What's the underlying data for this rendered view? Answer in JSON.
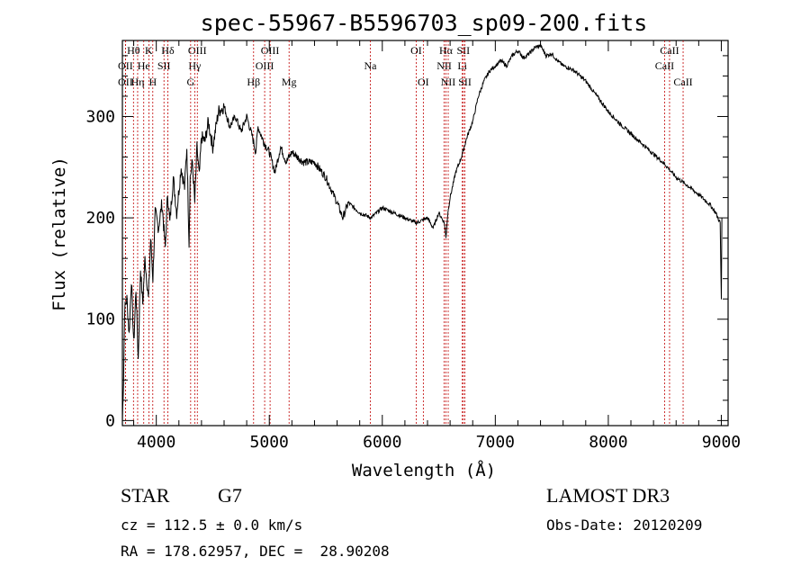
{
  "colors": {
    "axis": "#000000",
    "spectrum": "#000000",
    "line_marker": "#c00000",
    "background": "#ffffff"
  },
  "chart_data": {
    "type": "line",
    "title": "spec-55967-B5596703_sp09-200.fits",
    "xlabel": "Wavelength (Å)",
    "ylabel": "Flux (relative)",
    "xlim": [
      3700,
      9060
    ],
    "ylim": [
      -5,
      375
    ],
    "xticks": [
      4000,
      5000,
      6000,
      7000,
      8000,
      9000
    ],
    "yticks": [
      0,
      100,
      200,
      300
    ],
    "grid": false,
    "legend": "none",
    "series": [
      {
        "name": "flux",
        "x": [
          3700,
          3710,
          3720,
          3740,
          3760,
          3780,
          3800,
          3820,
          3840,
          3860,
          3880,
          3900,
          3930,
          3950,
          3970,
          3990,
          4020,
          4050,
          4080,
          4100,
          4120,
          4150,
          4180,
          4220,
          4250,
          4270,
          4290,
          4300,
          4320,
          4340,
          4360,
          4380,
          4400,
          4430,
          4460,
          4500,
          4550,
          4600,
          4650,
          4700,
          4750,
          4800,
          4850,
          4880,
          4900,
          4950,
          5000,
          5050,
          5100,
          5150,
          5200,
          5300,
          5400,
          5500,
          5600,
          5650,
          5700,
          5800,
          5900,
          6000,
          6100,
          6200,
          6300,
          6400,
          6450,
          6500,
          6550,
          6563,
          6580,
          6600,
          6650,
          6700,
          6750,
          6800,
          6850,
          6900,
          6950,
          7000,
          7050,
          7100,
          7150,
          7200,
          7250,
          7300,
          7350,
          7400,
          7450,
          7500,
          7550,
          7600,
          7650,
          7700,
          7800,
          7900,
          8000,
          8100,
          8200,
          8300,
          8400,
          8500,
          8600,
          8700,
          8800,
          8900,
          8950,
          8990,
          9000,
          9005
        ],
        "y": [
          0,
          40,
          110,
          120,
          85,
          140,
          75,
          130,
          60,
          150,
          115,
          160,
          120,
          180,
          140,
          205,
          190,
          215,
          170,
          225,
          195,
          240,
          205,
          250,
          230,
          270,
          175,
          240,
          255,
          215,
          270,
          240,
          280,
          275,
          295,
          270,
          305,
          310,
          290,
          300,
          285,
          300,
          280,
          265,
          290,
          275,
          265,
          245,
          270,
          255,
          265,
          255,
          255,
          240,
          215,
          200,
          215,
          205,
          200,
          210,
          205,
          200,
          195,
          200,
          190,
          205,
          195,
          180,
          205,
          220,
          245,
          260,
          280,
          295,
          320,
          335,
          345,
          350,
          355,
          350,
          360,
          365,
          358,
          362,
          368,
          370,
          360,
          362,
          355,
          350,
          348,
          345,
          335,
          320,
          305,
          293,
          283,
          273,
          263,
          253,
          240,
          232,
          223,
          213,
          205,
          195,
          120,
          200
        ]
      }
    ],
    "line_ids": [
      {
        "name": "Hθ",
        "wave": 3798,
        "row": 0
      },
      {
        "name": "OII",
        "wave": 3727,
        "row": 1
      },
      {
        "name": "OII",
        "wave": 3727,
        "row": 2
      },
      {
        "name": "He",
        "wave": 3889,
        "row": 1
      },
      {
        "name": "Hη",
        "wave": 3835,
        "row": 2
      },
      {
        "name": "K",
        "wave": 3934,
        "row": 0
      },
      {
        "name": "SII",
        "wave": 4068,
        "row": 1
      },
      {
        "name": "H",
        "wave": 3969,
        "row": 2
      },
      {
        "name": "Hδ",
        "wave": 4102,
        "row": 0
      },
      {
        "name": "OIII",
        "wave": 4363,
        "row": 0
      },
      {
        "name": "Hγ",
        "wave": 4340,
        "row": 1
      },
      {
        "name": "G",
        "wave": 4304,
        "row": 2
      },
      {
        "name": "OIII",
        "wave": 5007,
        "row": 0
      },
      {
        "name": "OIII",
        "wave": 4959,
        "row": 1
      },
      {
        "name": "Hβ",
        "wave": 4861,
        "row": 2
      },
      {
        "name": "Mg",
        "wave": 5175,
        "row": 2
      },
      {
        "name": "Na",
        "wave": 5894,
        "row": 1
      },
      {
        "name": "OI",
        "wave": 6300,
        "row": 0
      },
      {
        "name": "OI",
        "wave": 6363,
        "row": 2
      },
      {
        "name": "Hα",
        "wave": 6563,
        "row": 0
      },
      {
        "name": "SII",
        "wave": 6717,
        "row": 0
      },
      {
        "name": "NII",
        "wave": 6548,
        "row": 1
      },
      {
        "name": "Li",
        "wave": 6708,
        "row": 1
      },
      {
        "name": "NII",
        "wave": 6583,
        "row": 2
      },
      {
        "name": "SII",
        "wave": 6731,
        "row": 2
      },
      {
        "name": "CaII",
        "wave": 8542,
        "row": 0
      },
      {
        "name": "CaII",
        "wave": 8498,
        "row": 1
      },
      {
        "name": "CaII",
        "wave": 8662,
        "row": 2
      }
    ]
  },
  "info": {
    "object_class": "STAR",
    "subclass": "G7",
    "survey": "LAMOST DR3",
    "redshift_line": "cz = 112.5 ± 0.0 km/s",
    "obs_date_line": "Obs-Date: 20120209",
    "coords_line": "RA = 178.62957, DEC =  28.90208"
  }
}
